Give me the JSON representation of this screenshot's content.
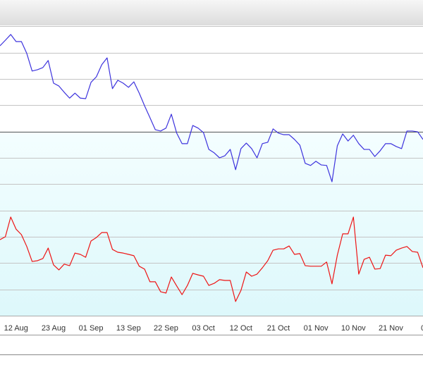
{
  "chart_data": {
    "type": "line",
    "categories": [
      null,
      null,
      null,
      "12 Aug",
      null,
      null,
      null,
      null,
      null,
      null,
      "23 Aug",
      null,
      null,
      null,
      null,
      null,
      null,
      "01 Sep",
      null,
      null,
      null,
      null,
      null,
      null,
      "13 Sep",
      null,
      null,
      null,
      null,
      null,
      null,
      "22 Sep",
      null,
      null,
      null,
      null,
      null,
      null,
      "03 Oct",
      null,
      null,
      null,
      null,
      null,
      null,
      "12 Oct",
      null,
      null,
      null,
      null,
      null,
      null,
      "21 Oct",
      null,
      null,
      null,
      null,
      null,
      null,
      "01 Nov",
      null,
      null,
      null,
      null,
      null,
      null,
      "10 Nov",
      null,
      null,
      null,
      null,
      null,
      null,
      "21 Nov",
      null,
      null,
      null,
      null,
      null,
      "0"
    ],
    "series": [
      {
        "color": "#3d33dd",
        "values": [
          10.26,
          10.47,
          10.69,
          10.42,
          10.42,
          9.97,
          9.3,
          9.35,
          9.43,
          9.7,
          8.84,
          8.73,
          8.49,
          8.27,
          8.46,
          8.27,
          8.25,
          8.87,
          9.08,
          9.54,
          9.8,
          8.63,
          8.95,
          8.84,
          8.68,
          8.89,
          8.46,
          7.98,
          7.53,
          7.07,
          7.02,
          7.13,
          7.66,
          6.94,
          6.54,
          6.54,
          7.23,
          7.13,
          6.96,
          6.32,
          6.19,
          6.0,
          6.08,
          6.32,
          5.55,
          6.35,
          6.56,
          6.35,
          6.0,
          6.54,
          6.59,
          7.1,
          6.94,
          6.88,
          6.88,
          6.7,
          6.48,
          5.79,
          5.71,
          5.87,
          5.73,
          5.71,
          5.09,
          6.46,
          6.91,
          6.64,
          6.86,
          6.54,
          6.32,
          6.32,
          6.05,
          6.27,
          6.54,
          6.54,
          6.43,
          6.35,
          7.02,
          7.02,
          6.99,
          6.7
        ]
      },
      {
        "color": "#ee1515",
        "values": [
          2.89,
          3.0,
          3.75,
          3.29,
          3.08,
          2.63,
          2.06,
          2.09,
          2.17,
          2.57,
          1.93,
          1.74,
          1.96,
          1.9,
          2.38,
          2.33,
          2.22,
          2.84,
          2.97,
          3.16,
          3.16,
          2.52,
          2.41,
          2.38,
          2.33,
          2.28,
          1.88,
          1.77,
          1.29,
          1.29,
          0.91,
          0.86,
          1.47,
          1.13,
          0.8,
          1.15,
          1.61,
          1.55,
          1.5,
          1.15,
          1.23,
          1.37,
          1.34,
          1.34,
          0.54,
          0.96,
          1.66,
          1.5,
          1.58,
          1.82,
          2.09,
          2.49,
          2.54,
          2.54,
          2.65,
          2.33,
          2.36,
          1.9,
          1.88,
          1.88,
          1.88,
          2.04,
          1.21,
          2.3,
          3.11,
          3.11,
          3.75,
          1.58,
          2.14,
          2.22,
          1.77,
          1.79,
          2.3,
          2.28,
          2.49,
          2.57,
          2.63,
          2.44,
          2.41,
          1.82
        ]
      }
    ],
    "ylim": [
      0,
      12
    ],
    "yticks": [
      1,
      2,
      3,
      4,
      5,
      6,
      7,
      8,
      9,
      10,
      11
    ],
    "baseline": 7,
    "grid": true
  }
}
